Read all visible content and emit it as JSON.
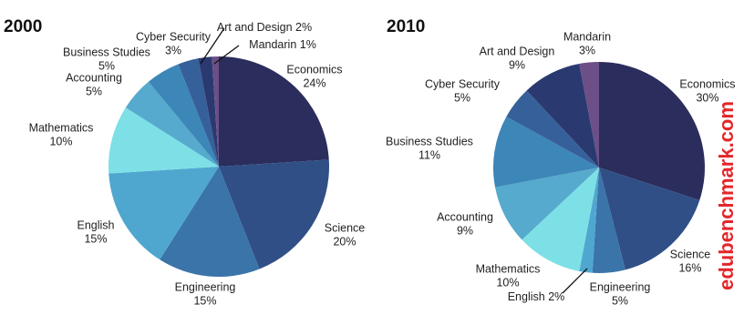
{
  "chart_data": [
    {
      "type": "pie",
      "title": "2000",
      "categories": [
        "Economics",
        "Science",
        "Engineering",
        "English",
        "Mathematics",
        "Accounting",
        "Business Studies",
        "Cyber Security",
        "Art and Design",
        "Mandarin"
      ],
      "values": [
        24,
        20,
        15,
        15,
        10,
        5,
        5,
        3,
        2,
        1
      ],
      "value_labels": [
        "24%",
        "20%",
        "15%",
        "15%",
        "10%",
        "5%",
        "5%",
        "3%",
        "2%",
        "1%"
      ],
      "colors": [
        "#2b2d5c",
        "#2f4f86",
        "#3a74a8",
        "#4fa7cf",
        "#7de0e6",
        "#55aacd",
        "#3d86b8",
        "#36609a",
        "#2a3a70",
        "#6b4f86"
      ]
    },
    {
      "type": "pie",
      "title": "2010",
      "categories": [
        "Economics",
        "Science",
        "Engineering",
        "English",
        "Mathematics",
        "Accounting",
        "Business Studies",
        "Cyber Security",
        "Art and Design",
        "Mandarin"
      ],
      "values": [
        30,
        16,
        5,
        2,
        10,
        9,
        11,
        5,
        9,
        3
      ],
      "value_labels": [
        "30%",
        "16%",
        "5%",
        "2%",
        "10%",
        "9%",
        "11%",
        "5%",
        "9%",
        "3%"
      ],
      "colors": [
        "#2b2d5c",
        "#2f4f86",
        "#3a74a8",
        "#4fa7cf",
        "#7de0e6",
        "#55aacd",
        "#3d86b8",
        "#36609a",
        "#2a3a70",
        "#6b4f86"
      ]
    }
  ],
  "watermark": "edubenchmark.com"
}
